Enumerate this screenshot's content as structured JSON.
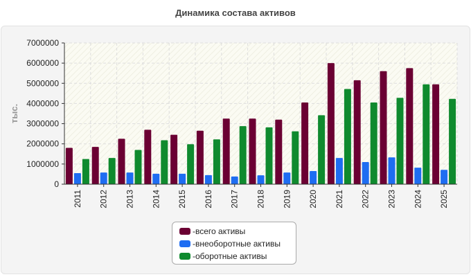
{
  "page": {
    "title": "Динамика состава активов"
  },
  "chart_data": {
    "type": "bar",
    "title": "Динамика состава активов",
    "ylabel": "тыс.",
    "xlabel": "",
    "ylim": [
      0,
      7000000
    ],
    "yticks": [
      0,
      1000000,
      2000000,
      3000000,
      4000000,
      5000000,
      6000000,
      7000000
    ],
    "grid": true,
    "legend_position": "bottom",
    "categories": [
      "2011",
      "2012",
      "2013",
      "2014",
      "2015",
      "2016",
      "2017",
      "2018",
      "2019",
      "2020",
      "2021",
      "2022",
      "2023",
      "2024",
      "2025"
    ],
    "series": [
      {
        "name": "всего активы",
        "color": "#6b0033",
        "values": [
          1800000,
          1850000,
          2250000,
          2700000,
          2450000,
          2650000,
          3250000,
          3250000,
          3200000,
          4050000,
          6000000,
          5150000,
          5600000,
          5750000,
          4950000
        ]
      },
      {
        "name": "внеоборотные активы",
        "color": "#1e6df2",
        "values": [
          550000,
          580000,
          580000,
          520000,
          520000,
          450000,
          380000,
          440000,
          580000,
          650000,
          1300000,
          1100000,
          1330000,
          820000,
          710000
        ]
      },
      {
        "name": "оборотные активы",
        "color": "#0f8a2e",
        "values": [
          1250000,
          1300000,
          1700000,
          2180000,
          1980000,
          2220000,
          2880000,
          2820000,
          2620000,
          3420000,
          4720000,
          4050000,
          4280000,
          4950000,
          4230000
        ]
      }
    ]
  }
}
